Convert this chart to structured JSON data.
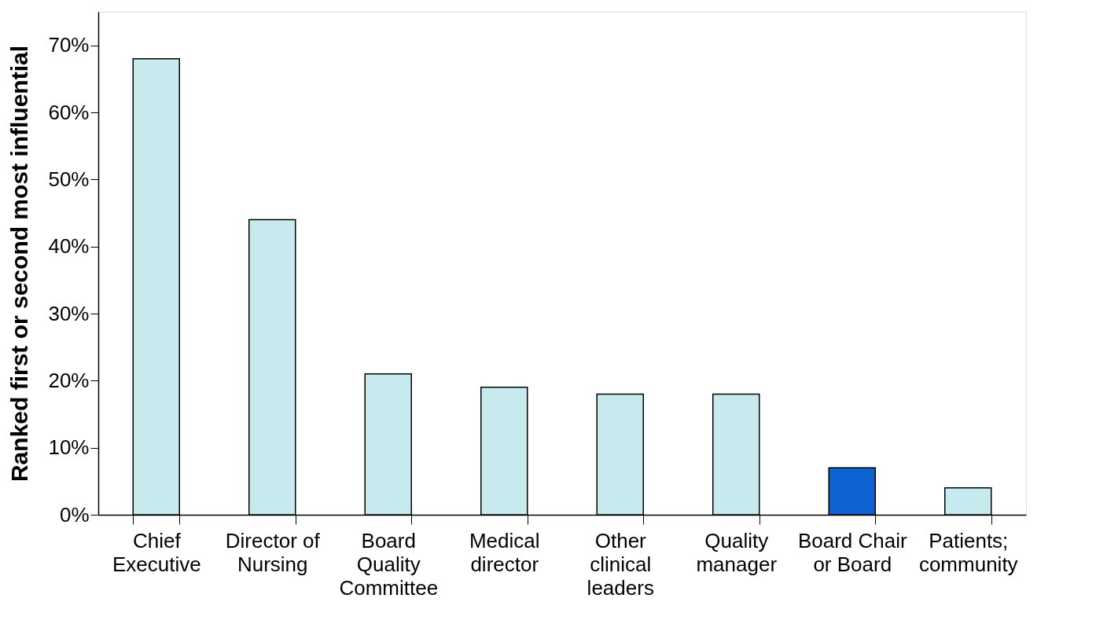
{
  "chart_data": {
    "type": "bar",
    "ylabel": "Ranked first or second most influential",
    "categories": [
      "Chief Executive",
      "Director of Nursing",
      "Board Quality Committee",
      "Medical director",
      "Other clinical leaders",
      "Quality manager",
      "Board Chair or Board",
      "Patients; community"
    ],
    "values": [
      68,
      44,
      21,
      19,
      18,
      18,
      7,
      4
    ],
    "colors": [
      "#c6eaee",
      "#c6eaee",
      "#c6eaee",
      "#c6eaee",
      "#c6eaee",
      "#c6eaee",
      "#0d63d2",
      "#c6eaee"
    ],
    "ylim": [
      0,
      75
    ],
    "yticks": [
      {
        "value": 0,
        "label": "0%"
      },
      {
        "value": 10,
        "label": "10%"
      },
      {
        "value": 20,
        "label": "20%"
      },
      {
        "value": 30,
        "label": "30%"
      },
      {
        "value": 40,
        "label": "40%"
      },
      {
        "value": 50,
        "label": "50%"
      },
      {
        "value": 60,
        "label": "60%"
      },
      {
        "value": 70,
        "label": "70%"
      }
    ],
    "grid": false,
    "legend": false
  }
}
